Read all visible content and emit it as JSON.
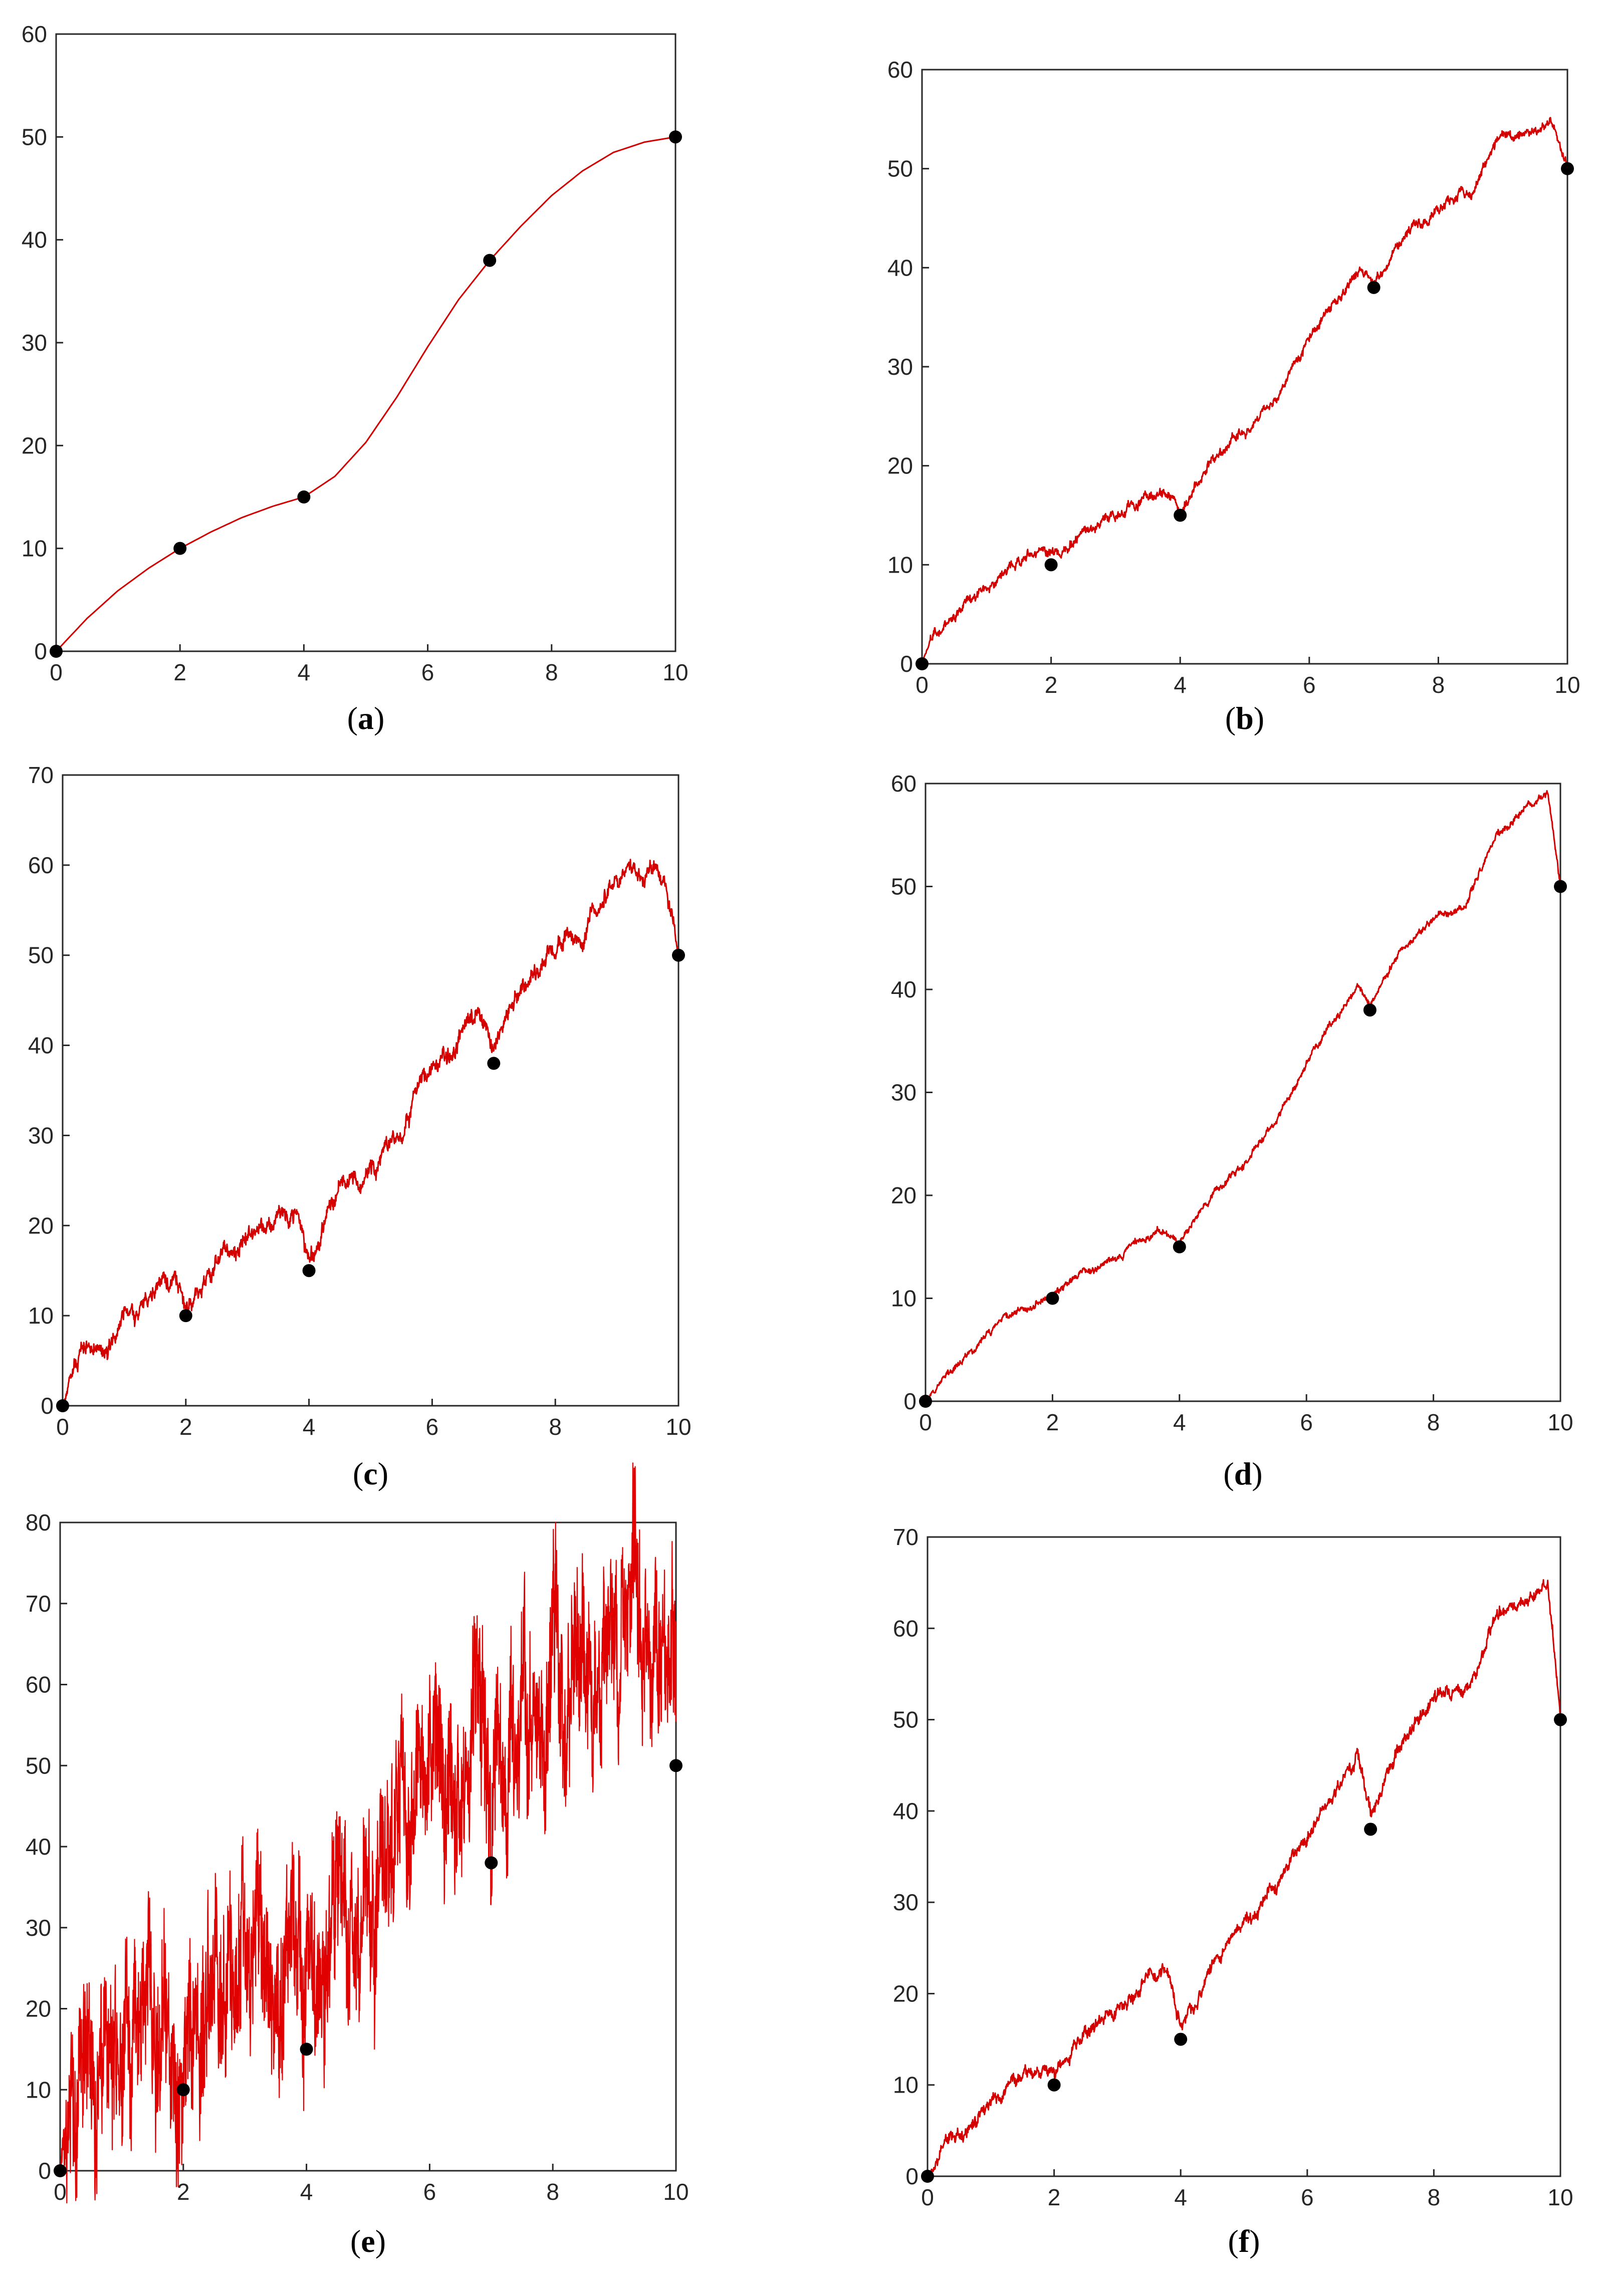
{
  "chart_data": [
    {
      "type": "line",
      "panel": "(a)",
      "caption_letter": "a",
      "xlim": [
        0,
        10
      ],
      "ylim": [
        0,
        60
      ],
      "xticks": [
        0,
        2,
        4,
        6,
        8,
        10
      ],
      "yticks": [
        0,
        10,
        20,
        30,
        40,
        50,
        60
      ],
      "grid": false,
      "line_color": "#d40000",
      "noise": 0,
      "interpolation_points": {
        "x": [
          0,
          2,
          4,
          7,
          10
        ],
        "y": [
          0,
          10,
          15,
          38,
          50
        ]
      },
      "series": [
        {
          "x": [
            0,
            0.5,
            1,
            1.5,
            2,
            2.5,
            3,
            3.5,
            4,
            4.5,
            5,
            5.5,
            6,
            6.5,
            7,
            7.5,
            8,
            8.5,
            9,
            9.5,
            10
          ],
          "y": [
            0,
            3.2,
            5.9,
            8.1,
            10,
            11.6,
            13.0,
            14.1,
            15,
            17.0,
            20.3,
            24.7,
            29.6,
            34.2,
            38,
            41.3,
            44.3,
            46.7,
            48.5,
            49.5,
            50
          ]
        }
      ]
    },
    {
      "type": "line",
      "panel": "(b)",
      "caption_letter": "b",
      "xlim": [
        0,
        10
      ],
      "ylim": [
        0,
        60
      ],
      "xticks": [
        0,
        2,
        4,
        6,
        8,
        10
      ],
      "yticks": [
        0,
        10,
        20,
        30,
        40,
        50,
        60
      ],
      "grid": false,
      "line_color": "#d40000",
      "noise": 0.45,
      "interpolation_points": {
        "x": [
          0,
          2,
          4,
          7,
          10
        ],
        "y": [
          0,
          10,
          15,
          38,
          50
        ]
      },
      "series": [
        {
          "x": [
            0,
            0.2,
            0.5,
            1.0,
            1.5,
            1.8,
            2,
            2.5,
            3.0,
            3.5,
            3.8,
            4,
            4.5,
            5.0,
            5.5,
            6.0,
            6.5,
            6.8,
            7,
            7.5,
            8.0,
            8.5,
            9.0,
            9.5,
            9.8,
            10
          ],
          "y": [
            0,
            3.2,
            5.0,
            7.5,
            10.2,
            11.4,
            10.7,
            13.2,
            15.0,
            17.4,
            17.1,
            15.2,
            20.5,
            23.8,
            27.0,
            33.0,
            37.5,
            40.1,
            38.6,
            43.5,
            46.0,
            47.5,
            53.2,
            54.1,
            54.3,
            50
          ]
        }
      ]
    },
    {
      "type": "line",
      "panel": "(c)",
      "caption_letter": "c",
      "xlim": [
        0,
        10
      ],
      "ylim": [
        0,
        70
      ],
      "xticks": [
        0,
        2,
        4,
        6,
        8,
        10
      ],
      "yticks": [
        0,
        10,
        20,
        30,
        40,
        50,
        60,
        70
      ],
      "grid": false,
      "line_color": "#d40000",
      "noise": 0.9,
      "interpolation_points": {
        "x": [
          0,
          2,
          4,
          7,
          10
        ],
        "y": [
          0,
          10,
          15,
          38,
          50
        ]
      },
      "series": [
        {
          "x": [
            0,
            0.2,
            0.5,
            1.0,
            1.5,
            1.8,
            2,
            2.5,
            3.0,
            3.5,
            3.8,
            4,
            4.5,
            5.0,
            5.5,
            6.0,
            6.5,
            6.8,
            7,
            7.5,
            8.0,
            8.5,
            9.0,
            9.5,
            9.8,
            10
          ],
          "y": [
            0,
            4.0,
            6.0,
            9.5,
            12.8,
            13.5,
            11.0,
            16.0,
            18.0,
            21.0,
            20.5,
            16.0,
            23.5,
            26.5,
            30.5,
            38.0,
            41.5,
            44.0,
            39.5,
            47.0,
            50.0,
            52.5,
            58.5,
            59.0,
            59.5,
            50
          ]
        }
      ]
    },
    {
      "type": "line",
      "panel": "(d)",
      "caption_letter": "d",
      "xlim": [
        0,
        10
      ],
      "ylim": [
        0,
        60
      ],
      "xticks": [
        0,
        2,
        4,
        6,
        8,
        10
      ],
      "yticks": [
        0,
        10,
        20,
        30,
        40,
        50,
        60
      ],
      "grid": false,
      "line_color": "#d40000",
      "noise": 0.3,
      "interpolation_points": {
        "x": [
          0,
          2,
          4,
          7,
          10
        ],
        "y": [
          0,
          10,
          15,
          38,
          50
        ]
      },
      "series": [
        {
          "x": [
            0,
            0.5,
            1.0,
            1.5,
            2,
            2.5,
            3.0,
            3.5,
            3.8,
            4,
            4.5,
            5.0,
            5.5,
            6.0,
            6.5,
            6.8,
            7,
            7.5,
            8.0,
            8.5,
            9.0,
            9.5,
            9.8,
            10
          ],
          "y": [
            0,
            3.5,
            6.5,
            9.0,
            10.3,
            12.5,
            14.0,
            16.0,
            16.4,
            15.2,
            20.0,
            23.0,
            27.0,
            33.0,
            37.5,
            40.5,
            38.7,
            44.0,
            47.0,
            48.0,
            55.0,
            58.0,
            59.2,
            50
          ]
        }
      ]
    },
    {
      "type": "line",
      "panel": "(e)",
      "caption_letter": "e",
      "xlim": [
        0,
        10
      ],
      "ylim": [
        0,
        80
      ],
      "xticks": [
        0,
        2,
        4,
        6,
        8,
        10
      ],
      "yticks": [
        0,
        10,
        20,
        30,
        40,
        50,
        60,
        70,
        80
      ],
      "grid": false,
      "line_color": "#e00000",
      "noise": 7.0,
      "interpolation_points": {
        "x": [
          0,
          2,
          4,
          7,
          10
        ],
        "y": [
          0,
          10,
          15,
          38,
          50
        ]
      },
      "series": [
        {
          "x": [
            0,
            0.2,
            0.5,
            1.0,
            1.5,
            1.8,
            2,
            2.5,
            3.0,
            3.5,
            3.8,
            4,
            4.5,
            5.0,
            5.5,
            6.0,
            6.5,
            6.8,
            7,
            7.5,
            8.0,
            8.5,
            9.0,
            9.5,
            9.8,
            10
          ],
          "y": [
            0,
            7.0,
            10.5,
            15.0,
            18.5,
            18.0,
            12.0,
            21.0,
            24.0,
            28.0,
            27.5,
            18.0,
            30.0,
            33.0,
            40.0,
            48.0,
            52.0,
            54.0,
            42.0,
            55.0,
            60.0,
            63.0,
            68.0,
            69.0,
            68.0,
            55.0
          ]
        }
      ]
    },
    {
      "type": "line",
      "panel": "(f)",
      "caption_letter": "f",
      "xlim": [
        0,
        10
      ],
      "ylim": [
        0,
        70
      ],
      "xticks": [
        0,
        2,
        4,
        6,
        8,
        10
      ],
      "yticks": [
        0,
        10,
        20,
        30,
        40,
        50,
        60,
        70
      ],
      "grid": false,
      "line_color": "#d40000",
      "noise": 0.65,
      "interpolation_points": {
        "x": [
          0,
          2,
          4,
          7,
          10
        ],
        "y": [
          0,
          10,
          15,
          38,
          50
        ]
      },
      "series": [
        {
          "x": [
            0,
            0.2,
            0.5,
            1.0,
            1.5,
            1.8,
            2,
            2.5,
            3.0,
            3.5,
            3.8,
            4,
            4.5,
            5.0,
            5.5,
            6.0,
            6.5,
            6.8,
            7,
            7.5,
            8.0,
            8.5,
            9.0,
            9.5,
            9.8,
            10
          ],
          "y": [
            0,
            3.0,
            5.0,
            8.0,
            10.5,
            11.5,
            11.0,
            15.5,
            18.5,
            21.5,
            22.5,
            16.0,
            23.5,
            27.5,
            31.5,
            38.0,
            43.0,
            46.0,
            40.0,
            48.0,
            52.0,
            53.0,
            61.0,
            63.5,
            65.0,
            50
          ]
        }
      ]
    }
  ]
}
